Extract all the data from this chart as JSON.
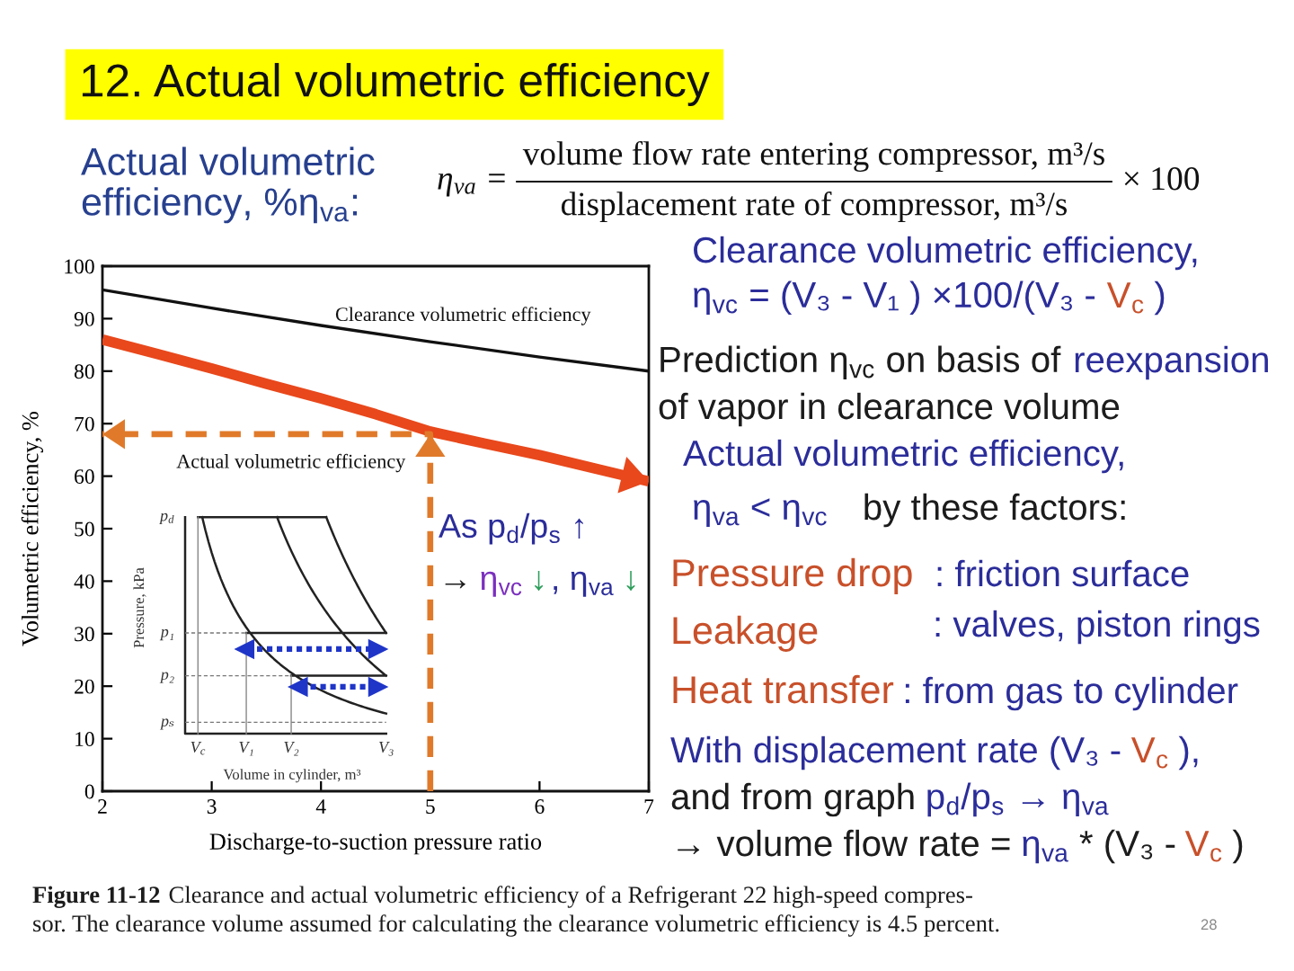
{
  "chart_data": {
    "type": "line",
    "title": "12. Actual volumetric efficiency",
    "subtitle": "Actual volumetric\nefficiency, %η$_{va}$:",
    "xlabel": "Discharge-to-suction pressure ratio",
    "ylabel": "Volumetric efficiency, %",
    "xlim": [
      2,
      7
    ],
    "ylim": [
      0,
      100
    ],
    "xticks": [
      2,
      3,
      4,
      5,
      6,
      7
    ],
    "yticks": [
      0,
      10,
      20,
      30,
      40,
      50,
      60,
      70,
      80,
      90,
      100
    ],
    "series": [
      {
        "name": "Clearance volumetric efficiency",
        "color": "#111111",
        "x": [
          2,
          3,
          4,
          5,
          6,
          7
        ],
        "values": [
          95.5,
          92,
          88.7,
          85.6,
          82.7,
          80
        ]
      },
      {
        "name": "Actual volumetric efficiency",
        "color": "#e8481c",
        "x": [
          2,
          2.5,
          3,
          3.5,
          4,
          4.5,
          5,
          5.5,
          6,
          6.5,
          7
        ],
        "values": [
          86,
          83.3,
          80.5,
          77.6,
          74.8,
          71.8,
          68.5,
          66.2,
          64,
          61.5,
          59
        ]
      },
      {
        "color": "#e07a2a",
        "line_style": "dashed",
        "x": [
          5,
          5,
          2
        ],
        "values": [
          0,
          68,
          68
        ]
      }
    ],
    "annotations": [
      "η$_{va}$ =",
      "volume flow rate entering compressor, m³/s",
      "displacement rate of compressor, m³/s",
      "× 100",
      "Clearance volumetric efficiency,",
      "η$_{vc}$ = (V₃ - V₁ ) ×100/(V₃ -",
      "V$_{c}$",
      ")",
      "Prediction η$_{vc}$ on basis of",
      "reexpansion",
      "of vapor in clearance volume",
      "Actual volumetric efficiency,",
      "η$_{va}$ < η$_{vc}$",
      "by these factors:",
      "Pressure drop",
      ": friction surface",
      "Leakage",
      ": valves, piston rings",
      "Heat transfer",
      ": from gas to cylinder",
      "With displacement rate (V₃ -",
      "V$_{c}$",
      "),",
      "and from graph",
      "p$_{d}$/p$_{s}$ → η$_{va}$",
      "→ volume flow rate =",
      "η$_{va}$",
      "* (V₃ -",
      "V$_{c}$",
      ")",
      "As p$_{d}$/p$_{s}$ ↑",
      "→",
      "η$_{vc}$",
      "↓",
      ", η$_{va}$",
      "↓",
      "Figure 11-12",
      "Clearance and actual volumetric efficiency of a Refrigerant 22 high-speed compres-",
      "sor. The clearance volume assumed for calculating the clearance volumetric efficiency is 4.5 percent.",
      "28",
      "p$_{d}$",
      "p₁",
      "p₂",
      "pₛ",
      "V$_{c}$",
      "V₁",
      "V₂",
      "V₃",
      "Pressure, kPa",
      "Volume in cylinder, m³"
    ]
  }
}
